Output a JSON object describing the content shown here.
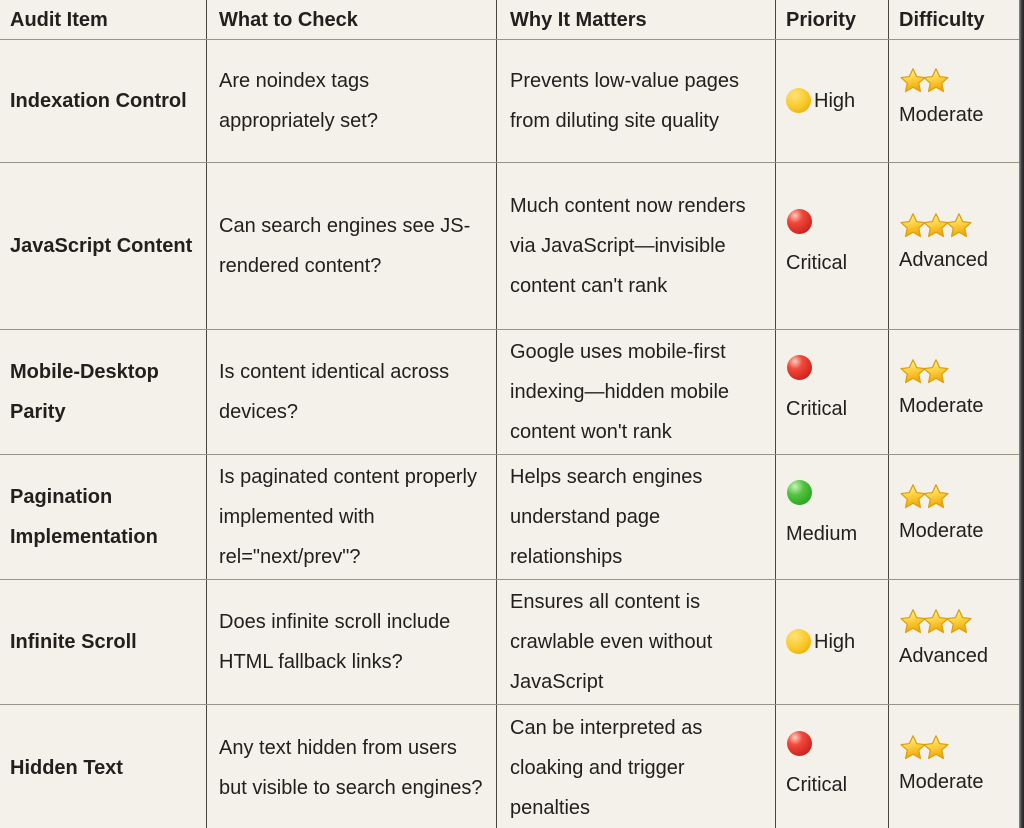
{
  "page": {
    "background_color": "#f4f1ea",
    "text_color": "#21201d"
  },
  "table": {
    "columns": [
      {
        "label": "Audit Item"
      },
      {
        "label": "What to Check"
      },
      {
        "label": "Why It Matters"
      },
      {
        "label": "Priority"
      },
      {
        "label": "Difficulty"
      }
    ],
    "rows": [
      {
        "audit_item": "Indexation Control",
        "what_to_check": "Are noindex tags appropriately set?",
        "why_it_matters": "Prevents low-value pages from diluting site quality",
        "priority": {
          "label": "High",
          "icon": "yellow-circle",
          "color": "#f5c51d",
          "stacked": false
        },
        "difficulty": {
          "label": "Moderate",
          "stars": 2
        }
      },
      {
        "audit_item": "JavaScript Content",
        "what_to_check": "Can search engines see JS-rendered content?",
        "why_it_matters": "Much content now renders via JavaScript—invisible content can't rank",
        "priority": {
          "label": "Critical",
          "icon": "red-circle",
          "color": "#dd2e2e",
          "stacked": true
        },
        "difficulty": {
          "label": "Advanced",
          "stars": 3
        }
      },
      {
        "audit_item": "Mobile-Desktop Parity",
        "what_to_check": "Is content identical across devices?",
        "why_it_matters": "Google uses mobile-first indexing—hidden mobile content won't rank",
        "priority": {
          "label": "Critical",
          "icon": "red-circle",
          "color": "#dd2e2e",
          "stacked": true
        },
        "difficulty": {
          "label": "Moderate",
          "stars": 2
        }
      },
      {
        "audit_item": "Pagination Implementation",
        "what_to_check": "Is paginated content properly implemented with rel=\"next/prev\"?",
        "why_it_matters": "Helps search engines understand page relationships",
        "priority": {
          "label": "Medium",
          "icon": "green-circle",
          "color": "#35b02a",
          "stacked": true
        },
        "difficulty": {
          "label": "Moderate",
          "stars": 2
        }
      },
      {
        "audit_item": "Infinite Scroll",
        "what_to_check": "Does infinite scroll include HTML fallback links?",
        "why_it_matters": "Ensures all content is crawlable even without JavaScript",
        "priority": {
          "label": "High",
          "icon": "yellow-circle",
          "color": "#f5c51d",
          "stacked": false
        },
        "difficulty": {
          "label": "Advanced",
          "stars": 3
        }
      },
      {
        "audit_item": "Hidden Text",
        "what_to_check": "Any text hidden from users but visible to search engines?",
        "why_it_matters": "Can be interpreted as cloaking and trigger penalties",
        "priority": {
          "label": "Critical",
          "icon": "red-circle",
          "color": "#dd2e2e",
          "stacked": true
        },
        "difficulty": {
          "label": "Moderate",
          "stars": 2
        }
      }
    ]
  },
  "icons": {
    "star_fill_top": "#fff7d6",
    "star_fill_bottom": "#f0a90a",
    "star_stroke": "#db9f07"
  }
}
